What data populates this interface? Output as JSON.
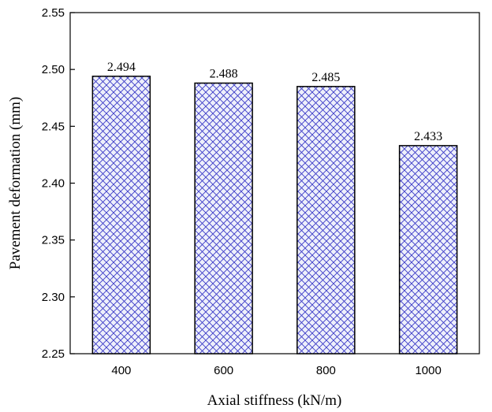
{
  "chart_data": {
    "type": "bar",
    "categories": [
      "400",
      "600",
      "800",
      "1000"
    ],
    "values": [
      2.494,
      2.488,
      2.485,
      2.433
    ],
    "data_labels": [
      "2.494",
      "2.488",
      "2.485",
      "2.433"
    ],
    "xlabel": "Axial stiffness (kN/m)",
    "ylabel": "Pavement deformation (mm)",
    "ylim": [
      2.25,
      2.55
    ],
    "yticks": [
      "2.25",
      "2.30",
      "2.35",
      "2.40",
      "2.45",
      "2.50",
      "2.55"
    ],
    "ytick_values": [
      2.25,
      2.3,
      2.35,
      2.4,
      2.45,
      2.5,
      2.55
    ],
    "grid": false,
    "bar_fill": "crosshatch",
    "hatch_color": "#3a3ac8",
    "bar_edge_color": "#000000"
  }
}
